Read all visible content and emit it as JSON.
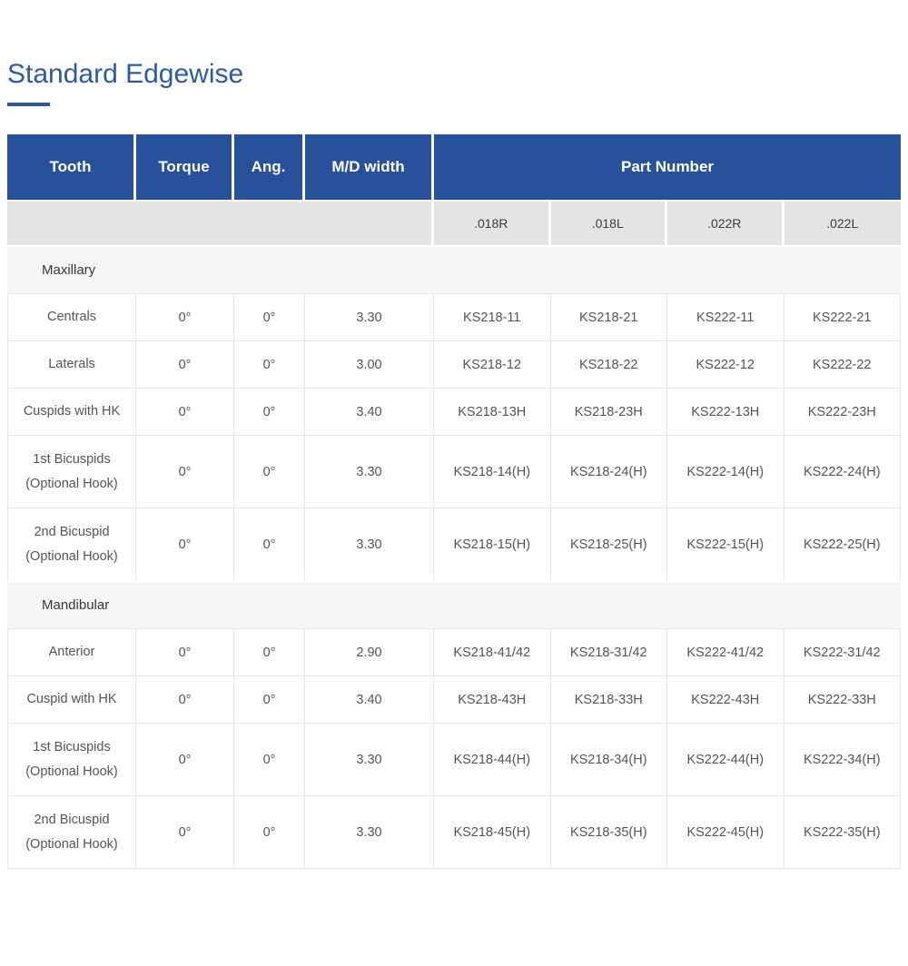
{
  "page": {
    "title": "Standard Edgewise"
  },
  "colors": {
    "header_bg": "#27529b",
    "title_blue": "#2c5aa8",
    "subheader_bg": "#e4e4e4",
    "section_bg": "#f6f6f6",
    "body_text": "#555555"
  },
  "table": {
    "columns": [
      "Tooth",
      "Torque",
      "Ang.",
      "M/D width"
    ],
    "part_number_label": "Part Number",
    "sizes": [
      ".018R",
      ".018L",
      ".022R",
      ".022L"
    ],
    "sections": [
      {
        "label": "Maxillary",
        "rows": [
          {
            "tooth": "Centrals",
            "torque": "0°",
            "ang": "0°",
            "md": "3.30",
            "parts": [
              "KS218-11",
              "KS218-21",
              "KS222-11",
              "KS222-21"
            ]
          },
          {
            "tooth": "Laterals",
            "torque": "0°",
            "ang": "0°",
            "md": "3.00",
            "parts": [
              "KS218-12",
              "KS218-22",
              "KS222-12",
              "KS222-22"
            ]
          },
          {
            "tooth": "Cuspids with HK",
            "torque": "0°",
            "ang": "0°",
            "md": "3.40",
            "parts": [
              "KS218-13H",
              "KS218-23H",
              "KS222-13H",
              "KS222-23H"
            ]
          },
          {
            "tooth": "1st Bicuspids",
            "tooth_line2": "(Optional Hook)",
            "torque": "0°",
            "ang": "0°",
            "md": "3.30",
            "parts": [
              "KS218-14(H)",
              "KS218-24(H)",
              "KS222-14(H)",
              "KS222-24(H)"
            ]
          },
          {
            "tooth": "2nd Bicuspid",
            "tooth_line2": "(Optional Hook)",
            "torque": "0°",
            "ang": "0°",
            "md": "3.30",
            "parts": [
              "KS218-15(H)",
              "KS218-25(H)",
              "KS222-15(H)",
              "KS222-25(H)"
            ]
          }
        ]
      },
      {
        "label": "Mandibular",
        "rows": [
          {
            "tooth": "Anterior",
            "torque": "0°",
            "ang": "0°",
            "md": "2.90",
            "parts": [
              "KS218-41/42",
              "KS218-31/42",
              "KS222-41/42",
              "KS222-31/42"
            ]
          },
          {
            "tooth": "Cuspid with HK",
            "torque": "0°",
            "ang": "0°",
            "md": "3.40",
            "parts": [
              "KS218-43H",
              "KS218-33H",
              "KS222-43H",
              "KS222-33H"
            ]
          },
          {
            "tooth": "1st Bicuspids",
            "tooth_line2": "(Optional Hook)",
            "torque": "0°",
            "ang": "0°",
            "md": "3.30",
            "parts": [
              "KS218-44(H)",
              "KS218-34(H)",
              "KS222-44(H)",
              "KS222-34(H)"
            ]
          },
          {
            "tooth": "2nd Bicuspid",
            "tooth_line2": "(Optional Hook)",
            "torque": "0°",
            "ang": "0°",
            "md": "3.30",
            "parts": [
              "KS218-45(H)",
              "KS218-35(H)",
              "KS222-45(H)",
              "KS222-35(H)"
            ]
          }
        ]
      }
    ]
  }
}
